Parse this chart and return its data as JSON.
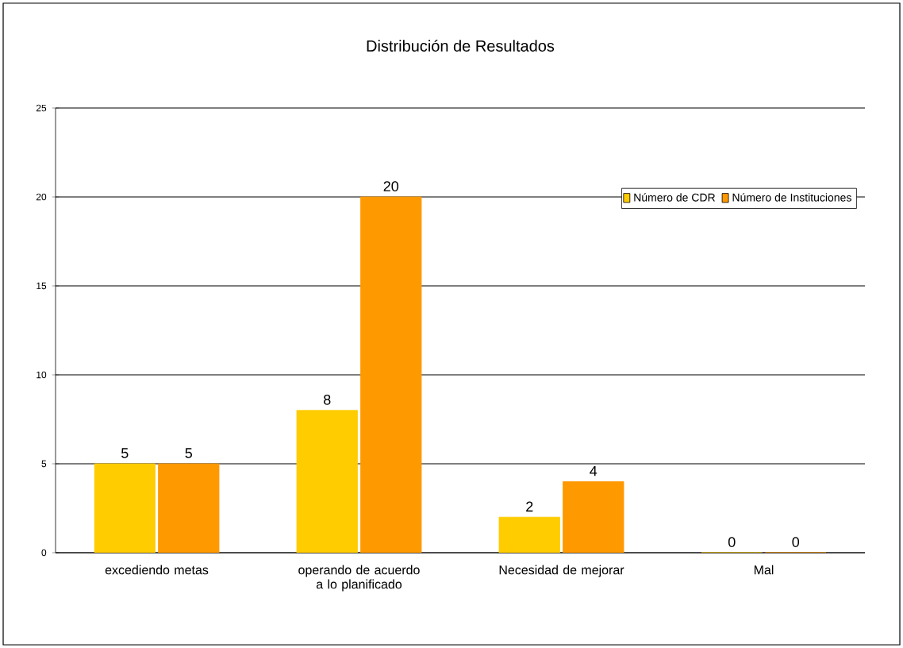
{
  "chart_data": {
    "type": "bar",
    "title": "Distribución de Resultados",
    "categories": [
      "excediendo metas",
      "operando de acuerdo a lo planificado",
      "Necesidad de mejorar",
      "Mal"
    ],
    "series": [
      {
        "name": "Número de CDR",
        "color": "#ffcc00",
        "values": [
          5,
          8,
          2,
          0
        ]
      },
      {
        "name": "Número de Instituciones",
        "color": "#ff9900",
        "values": [
          5,
          20,
          4,
          0
        ]
      }
    ],
    "ylim": [
      0,
      25
    ],
    "yticks": [
      0,
      5,
      10,
      15,
      20,
      25
    ],
    "grid": "y",
    "legend": "top right",
    "data_labels": true
  }
}
